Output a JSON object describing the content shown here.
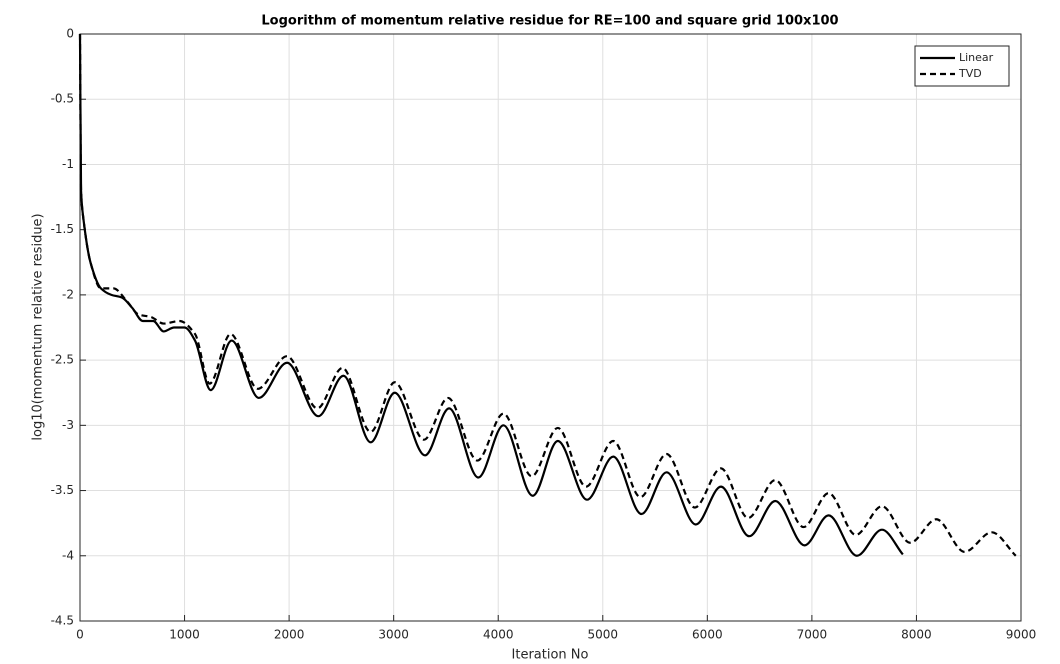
{
  "chart_data": {
    "type": "line",
    "title": "Logorithm of momentum relative residue for RE=100 and square grid 100x100",
    "x_label": "Iteration No",
    "y_label": "log10(momentum relative residue)",
    "series": [
      {
        "name": "Linear",
        "color": "#000000",
        "line_style": "solid",
        "x": [
          0,
          10,
          30,
          100,
          200,
          300,
          400,
          500,
          600,
          700,
          800,
          900,
          1000,
          1100,
          1250,
          1450,
          1710,
          1980,
          2280,
          2520,
          2780,
          3010,
          3300,
          3530,
          3810,
          4050,
          4330,
          4570,
          4850,
          5100,
          5370,
          5610,
          5890,
          6130,
          6400,
          6650,
          6930,
          7160,
          7430,
          7670,
          7870
        ],
        "values": [
          0,
          -1.2,
          -1.4,
          -1.75,
          -1.95,
          -2.0,
          -2.02,
          -2.1,
          -2.2,
          -2.2,
          -2.28,
          -2.25,
          -2.25,
          -2.35,
          -2.73,
          -2.35,
          -2.79,
          -2.52,
          -2.93,
          -2.62,
          -3.13,
          -2.75,
          -3.23,
          -2.87,
          -3.4,
          -3.0,
          -3.54,
          -3.12,
          -3.57,
          -3.24,
          -3.68,
          -3.36,
          -3.76,
          -3.47,
          -3.85,
          -3.58,
          -3.92,
          -3.69,
          -4.0,
          -3.8,
          -3.99
        ]
      },
      {
        "name": "TVD",
        "color": "#000000",
        "line_style": "dashed",
        "x": [
          0,
          10,
          30,
          100,
          200,
          320,
          450,
          560,
          680,
          800,
          950,
          1100,
          1240,
          1440,
          1700,
          1980,
          2270,
          2510,
          2780,
          3010,
          3290,
          3520,
          3800,
          4050,
          4320,
          4570,
          4840,
          5100,
          5360,
          5610,
          5880,
          6130,
          6390,
          6650,
          6920,
          7160,
          7420,
          7670,
          7940,
          8190,
          8460,
          8720,
          8950
        ],
        "values": [
          0,
          -1.2,
          -1.4,
          -1.75,
          -1.95,
          -1.95,
          -2.05,
          -2.15,
          -2.17,
          -2.22,
          -2.2,
          -2.3,
          -2.68,
          -2.3,
          -2.72,
          -2.47,
          -2.87,
          -2.56,
          -3.05,
          -2.67,
          -3.11,
          -2.79,
          -3.27,
          -2.91,
          -3.39,
          -3.02,
          -3.47,
          -3.12,
          -3.55,
          -3.22,
          -3.63,
          -3.33,
          -3.71,
          -3.42,
          -3.78,
          -3.52,
          -3.84,
          -3.62,
          -3.9,
          -3.72,
          -3.97,
          -3.82,
          -4.0
        ]
      }
    ],
    "xlim": [
      0,
      9000
    ],
    "xticks": [
      0,
      1000,
      2000,
      3000,
      4000,
      5000,
      6000,
      7000,
      8000,
      9000
    ],
    "ylim": [
      -4.5,
      0
    ],
    "yticks": [
      -4.5,
      -4,
      -3.5,
      -3,
      -2.5,
      -2,
      -1.5,
      -1,
      -0.5,
      0
    ],
    "grid": true,
    "legend": "top-right"
  }
}
